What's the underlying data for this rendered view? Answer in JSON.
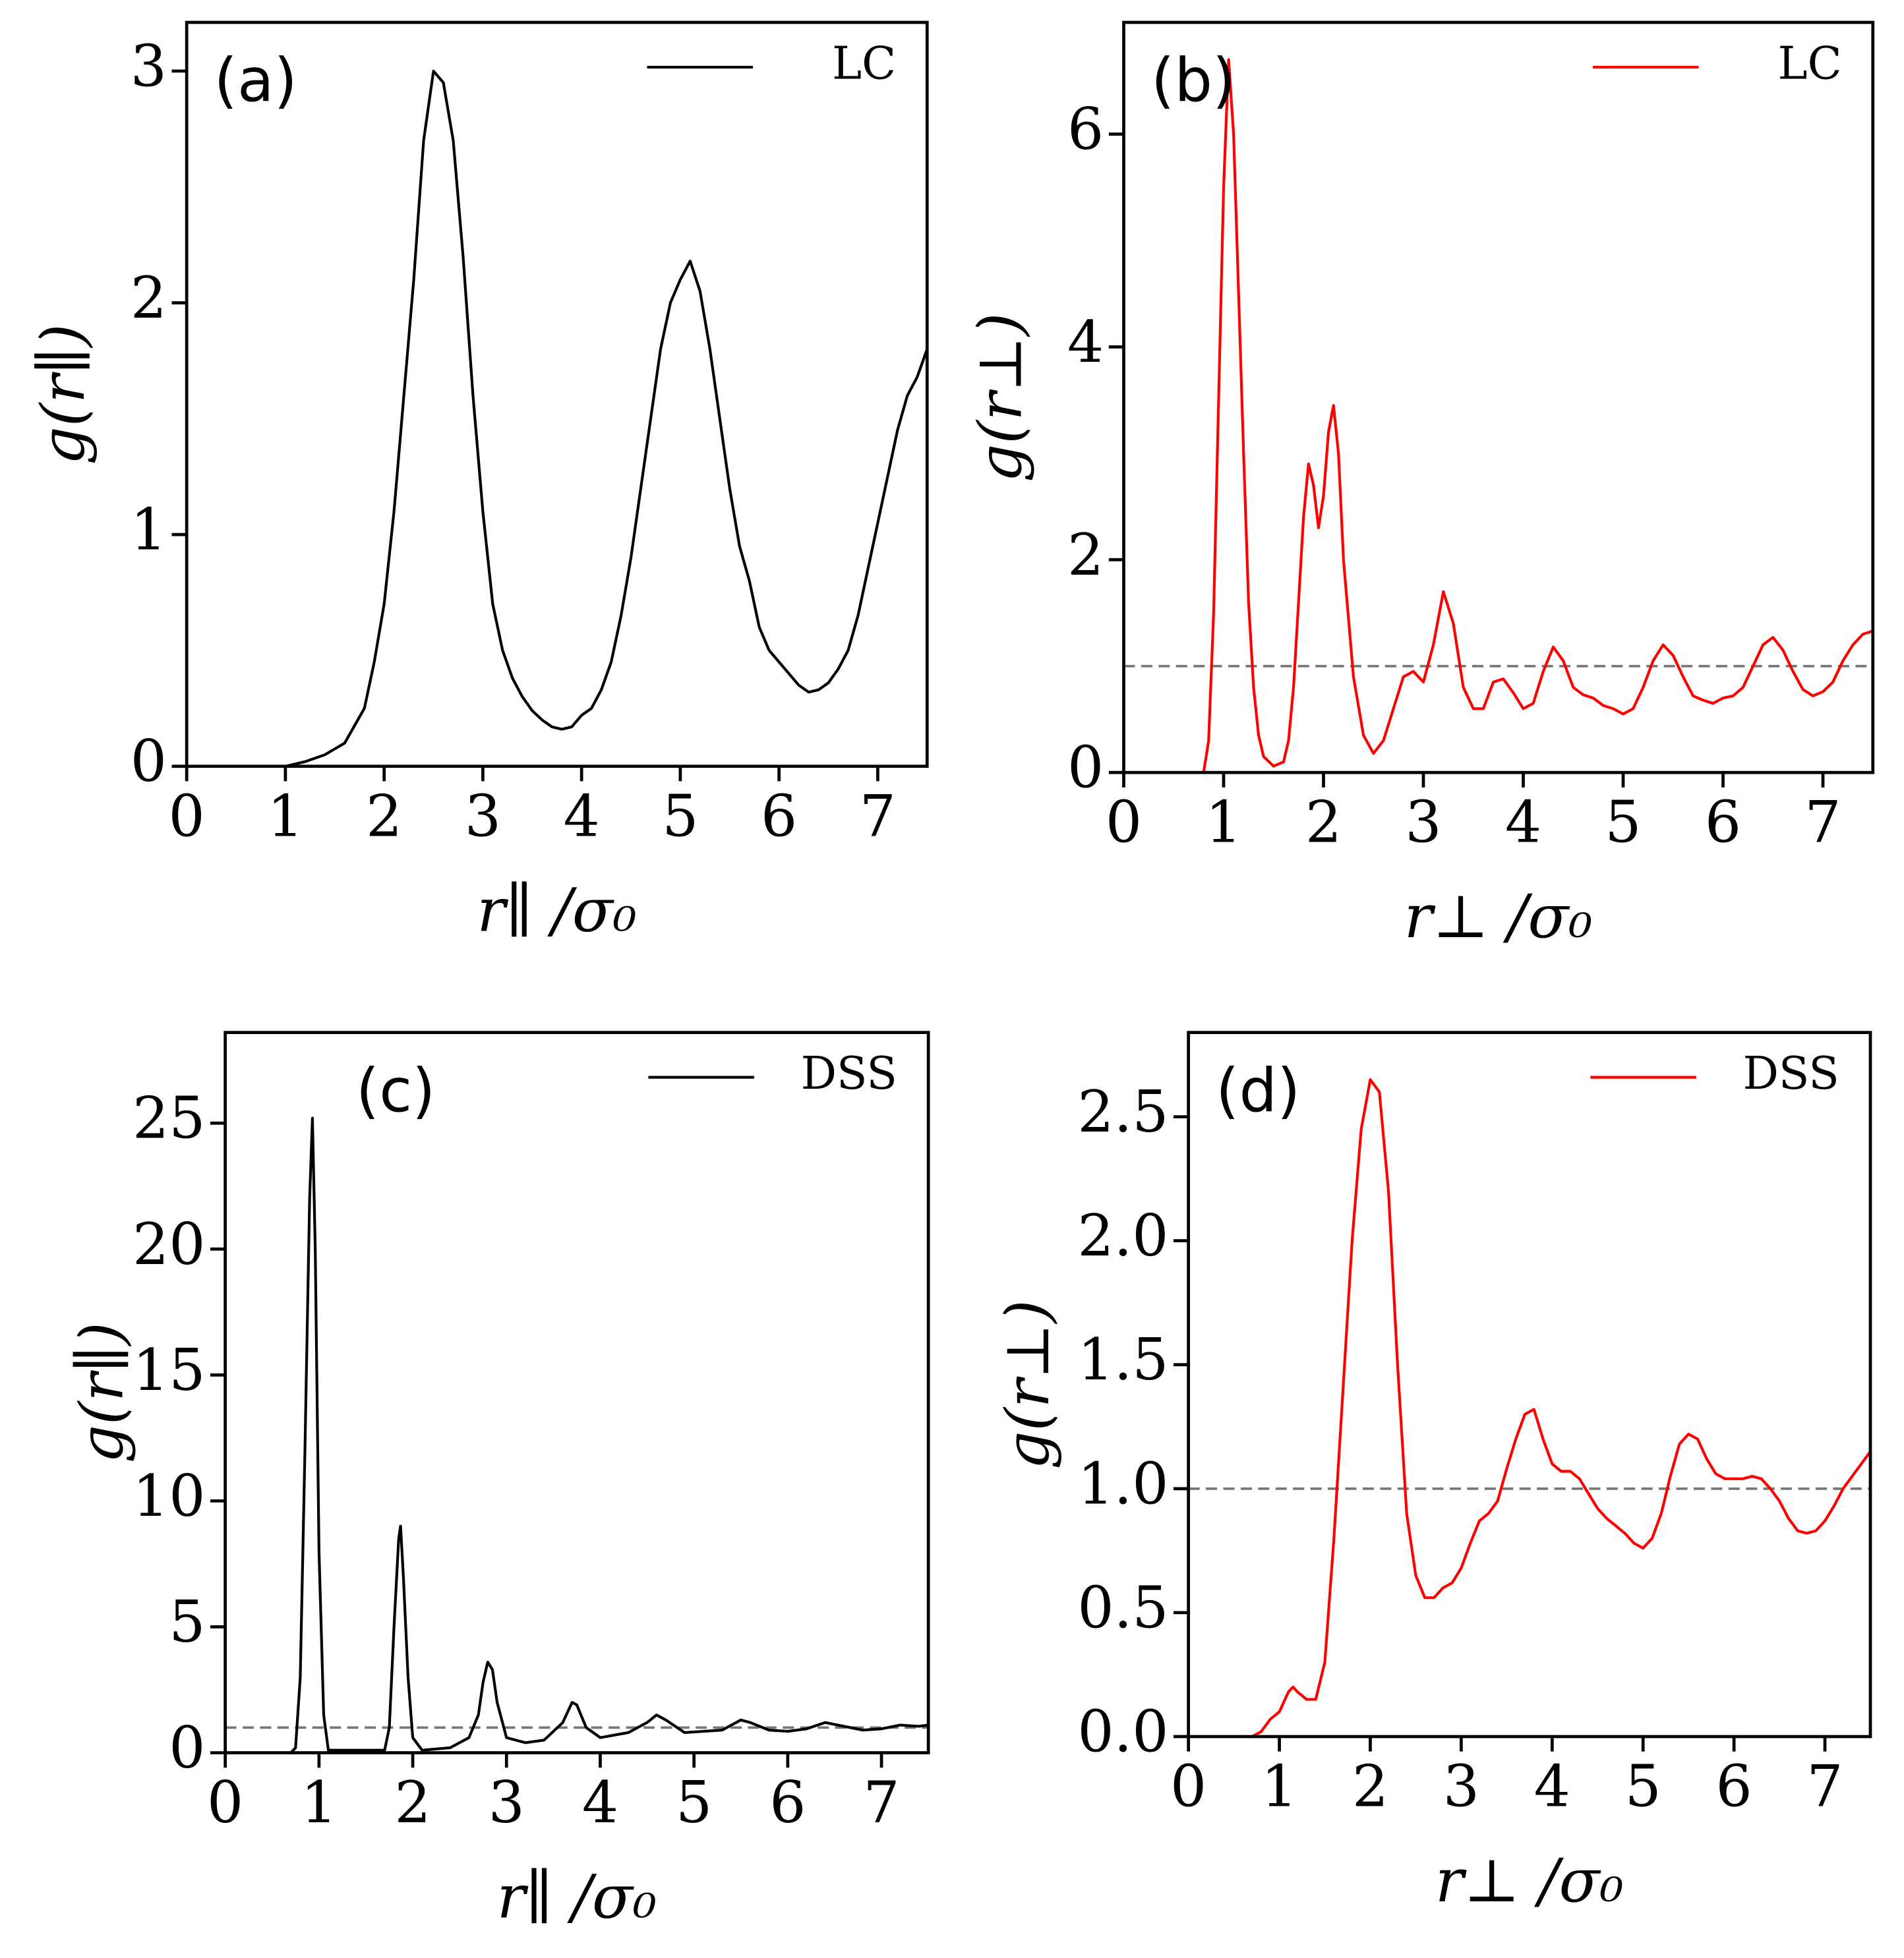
{
  "chart_data": [
    {
      "type": "line",
      "annotation": "(a)",
      "xlabel": "r∥ /σ₀",
      "ylabel": "g(r∥)",
      "xlim": [
        0,
        7.5
      ],
      "ylim": [
        0,
        3.21
      ],
      "xticks": [
        0,
        1,
        2,
        3,
        4,
        5,
        6,
        7
      ],
      "yticks": [
        0,
        1,
        2,
        3
      ],
      "legend": "upper right",
      "x": [
        0,
        0.5,
        1.0,
        1.2,
        1.4,
        1.6,
        1.8,
        1.9,
        2.0,
        2.1,
        2.2,
        2.3,
        2.4,
        2.5,
        2.6,
        2.7,
        2.8,
        2.9,
        3.0,
        3.1,
        3.2,
        3.3,
        3.4,
        3.5,
        3.6,
        3.7,
        3.8,
        3.9,
        4.0,
        4.1,
        4.2,
        4.3,
        4.4,
        4.5,
        4.6,
        4.7,
        4.8,
        4.9,
        5.0,
        5.1,
        5.2,
        5.3,
        5.4,
        5.5,
        5.6,
        5.7,
        5.8,
        5.9,
        6.0,
        6.1,
        6.2,
        6.3,
        6.4,
        6.5,
        6.6,
        6.7,
        6.8,
        6.9,
        7.0,
        7.1,
        7.2,
        7.3,
        7.4,
        7.5
      ],
      "series": [
        {
          "name": "LC",
          "color": "#000000",
          "values": [
            0,
            0,
            0,
            0.02,
            0.05,
            0.1,
            0.25,
            0.45,
            0.7,
            1.1,
            1.6,
            2.1,
            2.7,
            3.0,
            2.95,
            2.7,
            2.2,
            1.6,
            1.1,
            0.7,
            0.5,
            0.38,
            0.3,
            0.24,
            0.2,
            0.17,
            0.16,
            0.17,
            0.22,
            0.25,
            0.33,
            0.45,
            0.65,
            0.9,
            1.2,
            1.5,
            1.8,
            2.0,
            2.1,
            2.18,
            2.05,
            1.8,
            1.5,
            1.2,
            0.95,
            0.8,
            0.6,
            0.5,
            0.45,
            0.4,
            0.35,
            0.32,
            0.33,
            0.36,
            0.42,
            0.5,
            0.65,
            0.85,
            1.05,
            1.25,
            1.45,
            1.6,
            1.68,
            1.8
          ]
        }
      ]
    },
    {
      "type": "line",
      "annotation": "(b)",
      "xlabel": "r⊥ /σ₀",
      "ylabel": "g(r⊥)",
      "xlim": [
        0,
        7.5
      ],
      "ylim": [
        0,
        7.05
      ],
      "xticks": [
        0,
        1,
        2,
        3,
        4,
        5,
        6,
        7
      ],
      "yticks": [
        0,
        2,
        4,
        6
      ],
      "legend": "upper right",
      "reference_line": 1,
      "x": [
        0,
        0.8,
        0.85,
        0.9,
        0.95,
        1.0,
        1.05,
        1.1,
        1.15,
        1.2,
        1.25,
        1.3,
        1.35,
        1.4,
        1.5,
        1.6,
        1.65,
        1.7,
        1.75,
        1.8,
        1.85,
        1.9,
        1.95,
        2.0,
        2.05,
        2.1,
        2.15,
        2.2,
        2.3,
        2.4,
        2.5,
        2.6,
        2.7,
        2.8,
        2.9,
        3.0,
        3.1,
        3.2,
        3.3,
        3.4,
        3.5,
        3.6,
        3.7,
        3.8,
        3.9,
        4.0,
        4.1,
        4.2,
        4.3,
        4.4,
        4.5,
        4.6,
        4.7,
        4.8,
        4.9,
        5.0,
        5.1,
        5.2,
        5.3,
        5.4,
        5.5,
        5.6,
        5.7,
        5.8,
        5.9,
        6.0,
        6.1,
        6.2,
        6.3,
        6.4,
        6.5,
        6.6,
        6.7,
        6.8,
        6.9,
        7.0,
        7.1,
        7.2,
        7.3,
        7.4,
        7.5
      ],
      "series": [
        {
          "name": "LC",
          "color": "#ff0000",
          "values": [
            0,
            0,
            0.3,
            1.5,
            3.5,
            5.5,
            6.7,
            6.0,
            4.5,
            3.0,
            1.6,
            0.8,
            0.35,
            0.15,
            0.06,
            0.1,
            0.3,
            0.8,
            1.6,
            2.4,
            2.9,
            2.7,
            2.3,
            2.6,
            3.2,
            3.45,
            3.0,
            2.0,
            0.9,
            0.35,
            0.18,
            0.3,
            0.6,
            0.9,
            0.95,
            0.85,
            1.2,
            1.7,
            1.4,
            0.8,
            0.6,
            0.6,
            0.85,
            0.88,
            0.75,
            0.6,
            0.65,
            0.95,
            1.18,
            1.05,
            0.8,
            0.73,
            0.7,
            0.63,
            0.6,
            0.55,
            0.6,
            0.8,
            1.05,
            1.2,
            1.1,
            0.9,
            0.72,
            0.68,
            0.65,
            0.7,
            0.72,
            0.8,
            1.0,
            1.2,
            1.27,
            1.15,
            0.95,
            0.78,
            0.72,
            0.76,
            0.85,
            1.05,
            1.2,
            1.3,
            1.33
          ]
        }
      ]
    },
    {
      "type": "line",
      "annotation": "(c)",
      "xlabel": "r∥ /σ₀",
      "ylabel": "g(r∥)",
      "xlim": [
        0,
        7.5
      ],
      "ylim": [
        0,
        28.6
      ],
      "xticks": [
        0,
        1,
        2,
        3,
        4,
        5,
        6,
        7
      ],
      "yticks": [
        0,
        5,
        10,
        15,
        20,
        25
      ],
      "legend": "upper right",
      "reference_line": 1,
      "x": [
        0,
        0.7,
        0.75,
        0.8,
        0.85,
        0.9,
        0.93,
        0.96,
        1.0,
        1.05,
        1.1,
        1.7,
        1.75,
        1.8,
        1.85,
        1.87,
        1.9,
        1.95,
        2.0,
        2.1,
        2.4,
        2.6,
        2.7,
        2.75,
        2.8,
        2.85,
        2.9,
        3.0,
        3.2,
        3.4,
        3.6,
        3.7,
        3.75,
        3.85,
        4.0,
        4.3,
        4.5,
        4.6,
        4.7,
        4.9,
        5.1,
        5.3,
        5.5,
        5.6,
        5.8,
        6.0,
        6.2,
        6.4,
        6.6,
        6.8,
        7.0,
        7.2,
        7.4,
        7.5
      ],
      "series": [
        {
          "name": "DSS",
          "color": "#000000",
          "values": [
            0,
            0,
            0.2,
            3,
            12,
            22,
            25.2,
            20,
            8,
            1.5,
            0.1,
            0.1,
            1,
            5,
            8.5,
            9,
            7,
            3,
            0.6,
            0.1,
            0.2,
            0.6,
            1.5,
            2.8,
            3.6,
            3.3,
            2.0,
            0.6,
            0.4,
            0.5,
            1.2,
            2.0,
            1.9,
            1.0,
            0.6,
            0.8,
            1.2,
            1.5,
            1.3,
            0.8,
            0.85,
            0.9,
            1.3,
            1.2,
            0.9,
            0.85,
            0.95,
            1.2,
            1.05,
            0.9,
            0.95,
            1.1,
            1.05,
            1.1
          ]
        }
      ]
    },
    {
      "type": "line",
      "annotation": "(d)",
      "xlabel": "r⊥ /σ₀",
      "ylabel": "g(r⊥)",
      "xlim": [
        0,
        7.5
      ],
      "ylim": [
        0,
        2.84
      ],
      "xticks": [
        0,
        1,
        2,
        3,
        4,
        5,
        6,
        7
      ],
      "yticks": [
        {
          "value": 0,
          "label": "0.0"
        },
        0.5,
        {
          "value": 1,
          "label": "1.0"
        },
        1.5,
        {
          "value": 2,
          "label": "2.0"
        },
        2.5
      ],
      "legend": "upper right",
      "reference_line": 1,
      "x": [
        0,
        0.7,
        0.8,
        0.9,
        1.0,
        1.1,
        1.15,
        1.2,
        1.3,
        1.4,
        1.5,
        1.6,
        1.7,
        1.8,
        1.9,
        2.0,
        2.1,
        2.2,
        2.3,
        2.4,
        2.5,
        2.6,
        2.7,
        2.8,
        2.9,
        3.0,
        3.1,
        3.2,
        3.3,
        3.4,
        3.5,
        3.6,
        3.7,
        3.8,
        3.9,
        4.0,
        4.1,
        4.2,
        4.3,
        4.4,
        4.5,
        4.6,
        4.7,
        4.8,
        4.9,
        5.0,
        5.1,
        5.2,
        5.3,
        5.4,
        5.5,
        5.6,
        5.7,
        5.8,
        5.9,
        6.0,
        6.1,
        6.2,
        6.3,
        6.4,
        6.5,
        6.6,
        6.7,
        6.8,
        6.9,
        7.0,
        7.1,
        7.2,
        7.3,
        7.4,
        7.5
      ],
      "series": [
        {
          "name": "DSS",
          "color": "#ff0000",
          "values": [
            0,
            0,
            0.02,
            0.07,
            0.1,
            0.18,
            0.2,
            0.18,
            0.15,
            0.15,
            0.3,
            0.8,
            1.4,
            2.0,
            2.45,
            2.65,
            2.6,
            2.2,
            1.5,
            0.9,
            0.65,
            0.56,
            0.56,
            0.6,
            0.62,
            0.68,
            0.78,
            0.87,
            0.9,
            0.95,
            1.08,
            1.2,
            1.3,
            1.32,
            1.2,
            1.1,
            1.07,
            1.07,
            1.04,
            0.98,
            0.92,
            0.88,
            0.85,
            0.82,
            0.78,
            0.76,
            0.8,
            0.9,
            1.05,
            1.18,
            1.22,
            1.2,
            1.12,
            1.06,
            1.04,
            1.04,
            1.04,
            1.05,
            1.04,
            1.0,
            0.95,
            0.88,
            0.83,
            0.82,
            0.83,
            0.87,
            0.93,
            1.0,
            1.05,
            1.1,
            1.15
          ]
        }
      ]
    }
  ]
}
